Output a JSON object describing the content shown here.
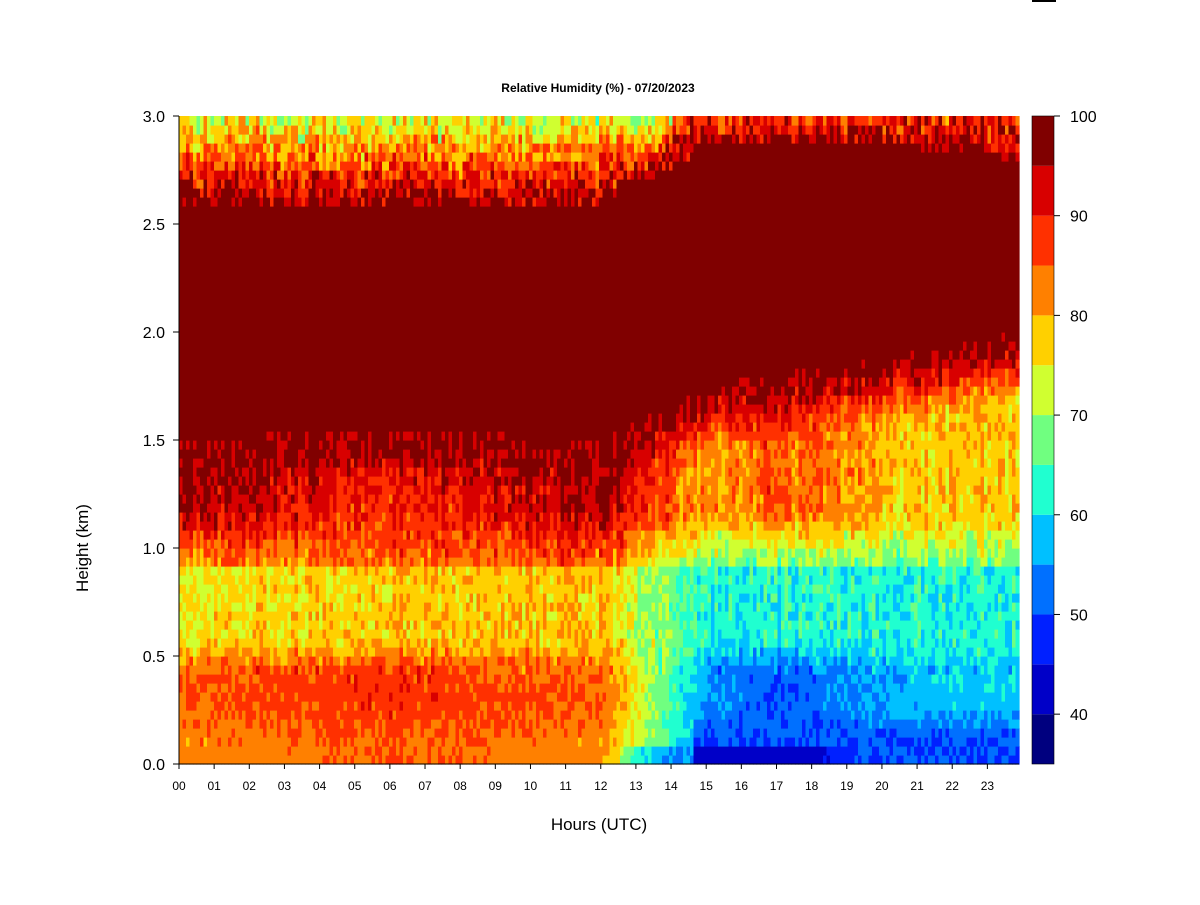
{
  "chart_data": {
    "type": "heatmap",
    "title": "Relative Humidity (%) - 07/20/2023",
    "xlabel": "Hours (UTC)",
    "ylabel": "Height (km)",
    "x_ticks": [
      "00",
      "01",
      "02",
      "03",
      "04",
      "05",
      "06",
      "07",
      "08",
      "09",
      "10",
      "11",
      "12",
      "13",
      "14",
      "15",
      "16",
      "17",
      "18",
      "19",
      "20",
      "21",
      "22",
      "23"
    ],
    "y_ticks": [
      "0.0",
      "0.5",
      "1.0",
      "1.5",
      "2.0",
      "2.5",
      "3.0"
    ],
    "xlim": [
      0,
      23.9
    ],
    "ylim": [
      0,
      3.0
    ],
    "colorbar": {
      "levels": [
        35,
        40,
        45,
        50,
        55,
        60,
        65,
        70,
        75,
        80,
        85,
        90,
        95,
        100
      ],
      "tick_labels": [
        "40",
        "50",
        "60",
        "70",
        "80",
        "90",
        "100"
      ],
      "tick_values": [
        40,
        50,
        60,
        70,
        80,
        90,
        100
      ],
      "colors": [
        "#00007f",
        "#0000c8",
        "#0020ff",
        "#0070ff",
        "#00c0ff",
        "#20ffd0",
        "#70ff80",
        "#d0ff30",
        "#ffd000",
        "#ff8000",
        "#ff3000",
        "#d80000",
        "#800000"
      ]
    },
    "approx_field_description_points": [
      {
        "hour": 0,
        "rh_at_0_2km": 85,
        "rh_at_0_6km": 75,
        "rh_at_1_2km": 95,
        "moist_layer_base_km": 1.5,
        "moist_layer_top_km": 2.6
      },
      {
        "hour": 6,
        "rh_at_0_2km": 88,
        "rh_at_0_6km": 78,
        "rh_at_1_2km": 88,
        "moist_layer_base_km": 1.55,
        "moist_layer_top_km": 2.6
      },
      {
        "hour": 12,
        "rh_at_0_2km": 85,
        "rh_at_0_6km": 78,
        "rh_at_1_2km": 95,
        "moist_layer_base_km": 1.5,
        "moist_layer_top_km": 2.6
      },
      {
        "hour": 15,
        "rh_at_0_2km": 55,
        "rh_at_0_6km": 62,
        "rh_at_1_2km": 80,
        "moist_layer_base_km": 1.75,
        "moist_layer_top_km": 2.85
      },
      {
        "hour": 17,
        "rh_at_0_2km": 50,
        "rh_at_0_6km": 62,
        "rh_at_1_2km": 85,
        "moist_layer_base_km": 1.8,
        "moist_layer_top_km": 2.9
      },
      {
        "hour": 21,
        "rh_at_0_2km": 58,
        "rh_at_0_6km": 62,
        "rh_at_1_2km": 78,
        "moist_layer_base_km": 1.9,
        "moist_layer_top_km": 2.85
      },
      {
        "hour": 23.9,
        "rh_at_0_2km": 58,
        "rh_at_0_6km": 62,
        "rh_at_1_2km": 78,
        "moist_layer_base_km": 2.0,
        "moist_layer_top_km": 2.8
      }
    ]
  }
}
